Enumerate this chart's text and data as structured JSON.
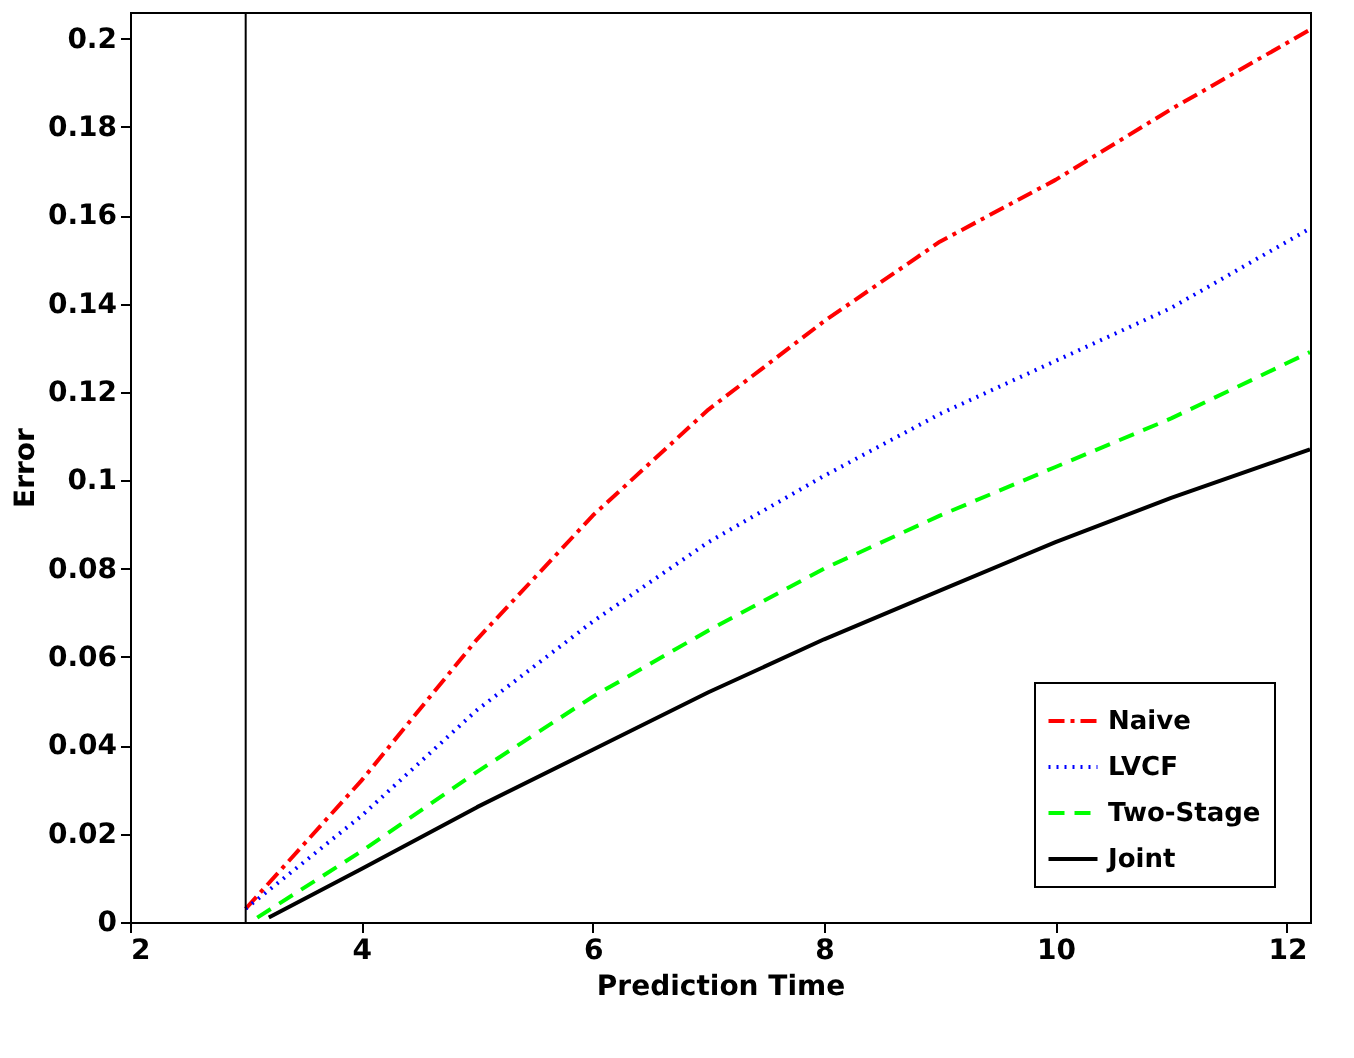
{
  "chart_data": {
    "type": "line",
    "xlabel": "Prediction Time",
    "ylabel": "Error",
    "xlim": [
      2,
      12.2
    ],
    "ylim": [
      0,
      0.206
    ],
    "xticks": [
      2,
      4,
      6,
      8,
      10,
      12
    ],
    "yticks": [
      0,
      0.02,
      0.04,
      0.06,
      0.08,
      0.1,
      0.12,
      0.14,
      0.16,
      0.18,
      0.2
    ],
    "legend": "bottom right",
    "grid": false,
    "ref_lines": [
      {
        "axis": "x",
        "value": 3,
        "color": "#000000"
      }
    ],
    "series": [
      {
        "name": "Naive",
        "color": "#ff0000",
        "line_style": "dashdot",
        "x": [
          3,
          4,
          5,
          6,
          7,
          8,
          9,
          10,
          11,
          12.2
        ],
        "values": [
          0.003,
          0.032,
          0.064,
          0.092,
          0.116,
          0.136,
          0.154,
          0.168,
          0.184,
          0.202
        ]
      },
      {
        "name": "LVCF",
        "color": "#0000ff",
        "line_style": "dotted",
        "x": [
          3,
          4,
          5,
          6,
          7,
          8,
          9,
          10,
          11,
          12.2
        ],
        "values": [
          0.003,
          0.024,
          0.048,
          0.068,
          0.086,
          0.101,
          0.115,
          0.127,
          0.139,
          0.157
        ]
      },
      {
        "name": "Two-Stage",
        "color": "#00ff00",
        "line_style": "dashed",
        "x": [
          3.1,
          4,
          5,
          6,
          7,
          8,
          9,
          10,
          11,
          12.2
        ],
        "values": [
          0.001,
          0.016,
          0.034,
          0.051,
          0.066,
          0.08,
          0.092,
          0.103,
          0.114,
          0.129
        ]
      },
      {
        "name": "Joint",
        "color": "#000000",
        "line_style": "solid",
        "x": [
          3.2,
          4,
          5,
          6,
          7,
          8,
          9,
          10,
          11,
          12.2
        ],
        "values": [
          0.001,
          0.012,
          0.026,
          0.039,
          0.052,
          0.064,
          0.075,
          0.086,
          0.096,
          0.107
        ]
      }
    ]
  }
}
